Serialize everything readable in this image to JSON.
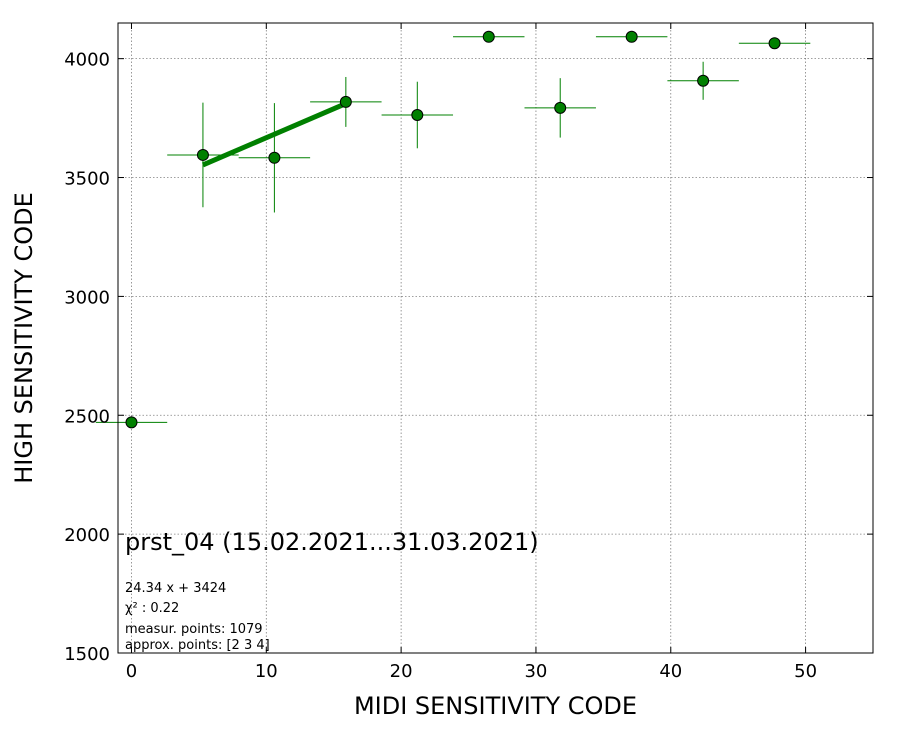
{
  "chart_data": {
    "type": "scatter",
    "title": "prst_04 (15.02.2021...31.03.2021)",
    "xlabel": "MIDI SENSITIVITY CODE",
    "ylabel": "HIGH SENSITIVITY CODE",
    "xlim": [
      -1,
      55
    ],
    "ylim": [
      1500,
      4150
    ],
    "xticks": [
      0,
      10,
      20,
      30,
      40,
      50
    ],
    "yticks": [
      1500,
      2000,
      2500,
      3000,
      3500,
      4000
    ],
    "grid": true,
    "colors": {
      "series": "#008000",
      "marker_edge": "#000000",
      "grid": "#808080"
    },
    "series": [
      {
        "points": [
          {
            "x": 0.0,
            "y": 2470,
            "xerr": 2.65,
            "yerr": 0
          },
          {
            "x": 5.3,
            "y": 3595,
            "xerr": 2.65,
            "yerr": 220
          },
          {
            "x": 10.6,
            "y": 3583,
            "xerr": 2.65,
            "yerr": 230
          },
          {
            "x": 15.9,
            "y": 3818,
            "xerr": 2.65,
            "yerr": 105
          },
          {
            "x": 21.2,
            "y": 3763,
            "xerr": 2.65,
            "yerr": 140
          },
          {
            "x": 26.5,
            "y": 4092,
            "xerr": 2.65,
            "yerr": 0
          },
          {
            "x": 31.8,
            "y": 3793,
            "xerr": 2.65,
            "yerr": 125
          },
          {
            "x": 37.1,
            "y": 4092,
            "xerr": 2.65,
            "yerr": 0
          },
          {
            "x": 42.4,
            "y": 3907,
            "xerr": 2.65,
            "yerr": 80
          },
          {
            "x": 47.7,
            "y": 4065,
            "xerr": 2.65,
            "yerr": 0
          }
        ]
      }
    ],
    "fit_line": {
      "slope": 24.34,
      "intercept": 3424,
      "x_range": [
        5.3,
        15.9
      ]
    },
    "annotations": [
      "24.34 x + 3424",
      "χ² : 0.22",
      "measur. points: 1079",
      "approx. points: [2 3 4]"
    ]
  }
}
